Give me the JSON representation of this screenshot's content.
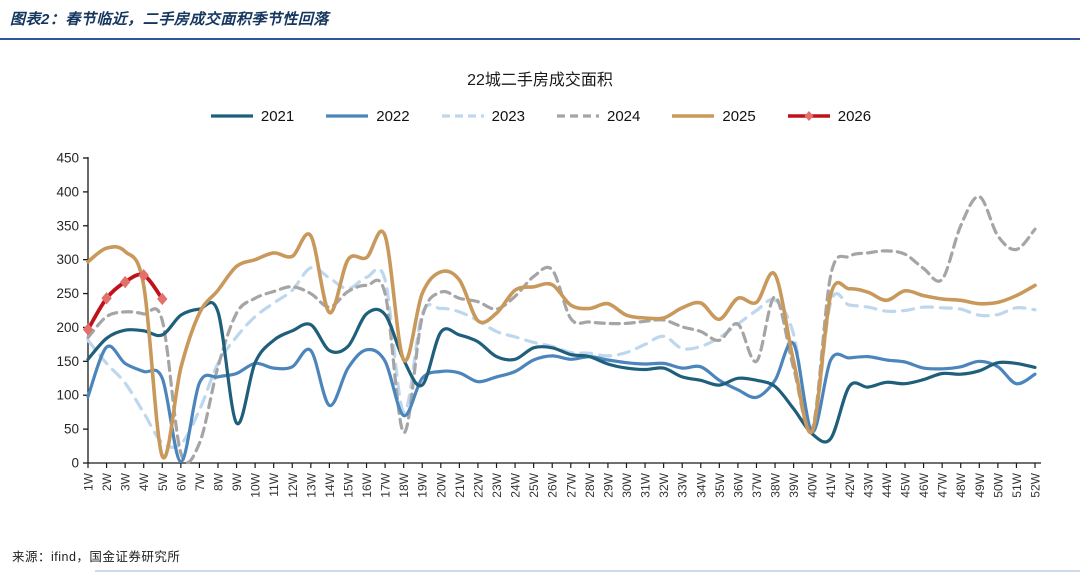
{
  "header": {
    "title": "图表2：春节临近，二手房成交面积季节性回落"
  },
  "footer": {
    "source": "来源：ifind，国金证券研究所"
  },
  "chart_data": {
    "type": "line",
    "title": "22城二手房成交面积",
    "xlabel": "",
    "ylabel": "",
    "ylim": [
      0,
      450
    ],
    "ytick_step": 50,
    "grid": false,
    "legend_position": "top",
    "categories": [
      "1W",
      "2W",
      "3W",
      "4W",
      "5W",
      "6W",
      "7W",
      "8W",
      "9W",
      "10W",
      "11W",
      "12W",
      "13W",
      "14W",
      "15W",
      "16W",
      "17W",
      "18W",
      "19W",
      "20W",
      "21W",
      "22W",
      "23W",
      "24W",
      "25W",
      "26W",
      "27W",
      "28W",
      "29W",
      "30W",
      "31W",
      "32W",
      "33W",
      "34W",
      "35W",
      "36W",
      "37W",
      "38W",
      "39W",
      "40W",
      "41W",
      "42W",
      "43W",
      "44W",
      "45W",
      "46W",
      "47W",
      "48W",
      "49W",
      "50W",
      "51W",
      "52W"
    ],
    "series": [
      {
        "name": "2021",
        "color": "#1f5f7c",
        "style": "solid",
        "width": 3.2,
        "values": [
          153,
          184,
          196,
          195,
          189,
          218,
          227,
          223,
          59,
          148,
          181,
          195,
          204,
          166,
          172,
          220,
          219,
          152,
          115,
          193,
          189,
          179,
          157,
          153,
          170,
          170,
          160,
          157,
          146,
          140,
          138,
          140,
          127,
          122,
          115,
          125,
          122,
          113,
          80,
          43,
          36,
          113,
          112,
          119,
          117,
          123,
          132,
          131,
          136,
          148,
          147,
          141
        ]
      },
      {
        "name": "2022",
        "color": "#4c85bc",
        "style": "solid",
        "width": 3.2,
        "values": [
          98,
          171,
          147,
          135,
          125,
          2,
          118,
          127,
          132,
          147,
          140,
          142,
          166,
          85,
          140,
          167,
          150,
          70,
          125,
          135,
          133,
          120,
          127,
          135,
          152,
          158,
          153,
          157,
          152,
          148,
          146,
          147,
          140,
          142,
          122,
          108,
          97,
          122,
          176,
          46,
          152,
          155,
          157,
          152,
          149,
          140,
          139,
          142,
          150,
          142,
          117,
          131
        ]
      },
      {
        "name": "2023",
        "color": "#bdd7ee",
        "style": "dashed",
        "width": 3.2,
        "dash": "11 8",
        "values": [
          181,
          147,
          118,
          74,
          30,
          28,
          78,
          147,
          186,
          216,
          236,
          255,
          288,
          273,
          257,
          274,
          270,
          75,
          220,
          228,
          223,
          210,
          194,
          186,
          178,
          172,
          163,
          162,
          158,
          163,
          175,
          187,
          169,
          172,
          185,
          205,
          225,
          240,
          190,
          47,
          237,
          233,
          230,
          224,
          225,
          230,
          229,
          227,
          218,
          219,
          229,
          226
        ]
      },
      {
        "name": "2024",
        "color": "#a5a5a5",
        "style": "dashed",
        "width": 3.2,
        "dash": "9 6",
        "values": [
          185,
          216,
          223,
          220,
          210,
          15,
          29,
          142,
          221,
          243,
          253,
          260,
          250,
          230,
          253,
          262,
          250,
          45,
          215,
          252,
          243,
          238,
          227,
          246,
          275,
          285,
          213,
          208,
          206,
          206,
          209,
          211,
          201,
          194,
          181,
          205,
          150,
          245,
          140,
          50,
          277,
          305,
          310,
          313,
          308,
          287,
          271,
          350,
          393,
          335,
          315,
          345
        ]
      },
      {
        "name": "2025",
        "color": "#c9995c",
        "style": "solid",
        "width": 3.6,
        "values": [
          297,
          317,
          312,
          262,
          10,
          140,
          221,
          255,
          290,
          300,
          310,
          305,
          335,
          222,
          300,
          303,
          335,
          152,
          250,
          282,
          270,
          210,
          221,
          255,
          260,
          263,
          233,
          228,
          235,
          218,
          214,
          214,
          229,
          236,
          212,
          243,
          237,
          278,
          150,
          47,
          248,
          257,
          252,
          240,
          254,
          247,
          242,
          240,
          235,
          237,
          247,
          262
        ]
      },
      {
        "name": "2026",
        "color": "#c1121c",
        "style": "solid",
        "width": 3.8,
        "marker": "diamond",
        "marker_color": "#e4706b",
        "values": [
          197,
          243,
          267,
          277,
          242
        ]
      }
    ]
  }
}
